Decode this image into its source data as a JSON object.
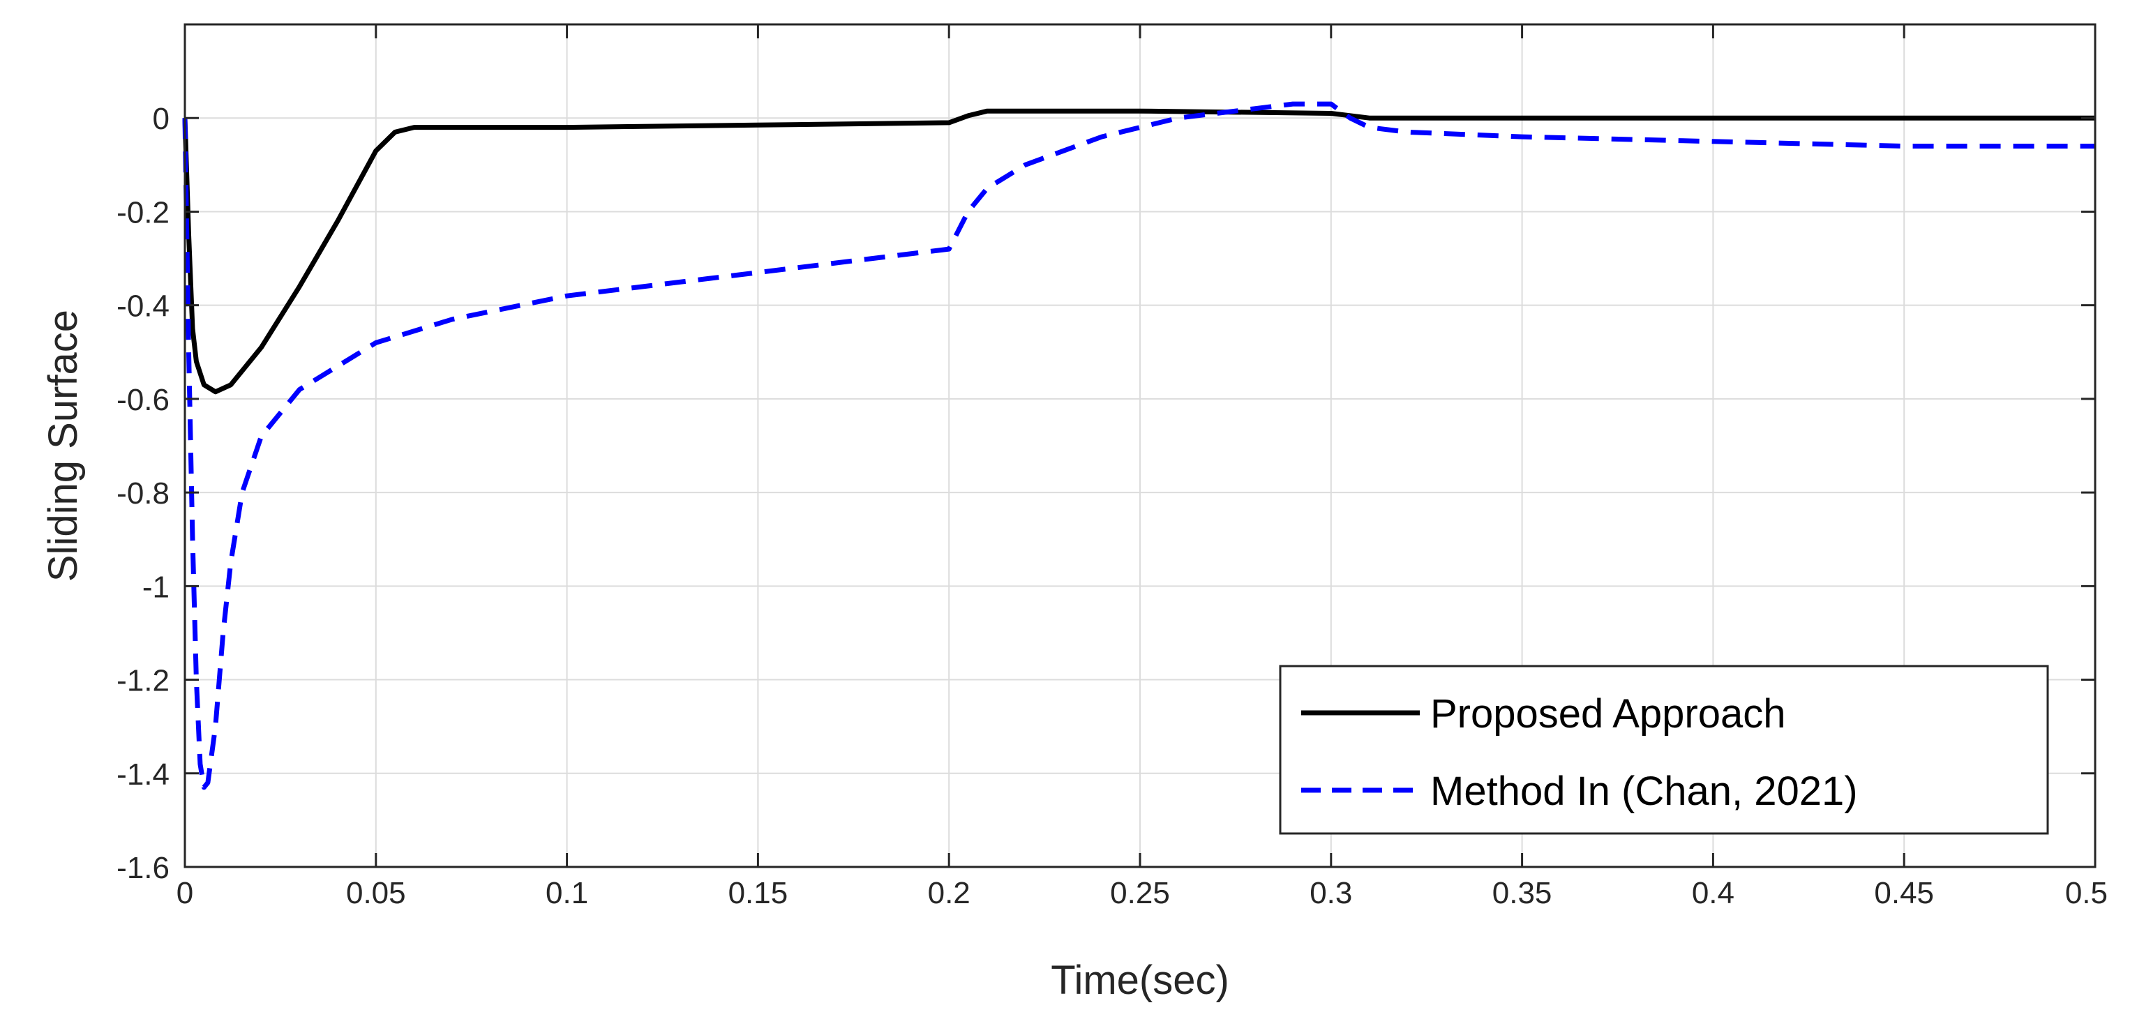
{
  "chart_data": {
    "type": "line",
    "title": "",
    "xlabel": "Time(sec)",
    "ylabel": "Sliding Surface",
    "xlim": [
      0,
      0.5
    ],
    "ylim": [
      -1.6,
      0.2
    ],
    "xticks": [
      0,
      0.05,
      0.1,
      0.15,
      0.2,
      0.25,
      0.3,
      0.35,
      0.4,
      0.45,
      0.5
    ],
    "xtick_labels": [
      "0",
      "0.05",
      "0.1",
      "0.15",
      "0.2",
      "0.25",
      "0.3",
      "0.35",
      "0.4",
      "0.45",
      "0.5"
    ],
    "yticks": [
      0,
      -0.2,
      -0.4,
      -0.6,
      -0.8,
      -1,
      -1.2,
      -1.4,
      -1.6
    ],
    "ytick_labels": [
      "0",
      "-0.2",
      "-0.4",
      "-0.6",
      "-0.8",
      "-1",
      "-1.2",
      "-1.4",
      "-1.6"
    ],
    "grid": true,
    "legend_position": "bottom-right",
    "series": [
      {
        "name": "Proposed Approach",
        "color": "#000000",
        "style": "solid",
        "x": [
          0,
          0.001,
          0.002,
          0.003,
          0.005,
          0.008,
          0.012,
          0.02,
          0.03,
          0.04,
          0.05,
          0.055,
          0.06,
          0.1,
          0.15,
          0.2,
          0.205,
          0.21,
          0.25,
          0.3,
          0.31,
          0.35,
          0.4,
          0.45,
          0.5
        ],
        "y": [
          0,
          -0.25,
          -0.45,
          -0.52,
          -0.57,
          -0.585,
          -0.57,
          -0.49,
          -0.36,
          -0.22,
          -0.07,
          -0.03,
          -0.02,
          -0.02,
          -0.015,
          -0.01,
          0.005,
          0.015,
          0.015,
          0.01,
          0,
          0,
          0,
          0,
          0
        ]
      },
      {
        "name": "Method In (Chan, 2021)",
        "color": "#0000ff",
        "style": "dashed",
        "x": [
          0,
          0.001,
          0.002,
          0.003,
          0.004,
          0.005,
          0.006,
          0.008,
          0.01,
          0.012,
          0.015,
          0.02,
          0.03,
          0.05,
          0.07,
          0.1,
          0.15,
          0.2,
          0.205,
          0.21,
          0.22,
          0.24,
          0.26,
          0.28,
          0.29,
          0.3,
          0.305,
          0.31,
          0.32,
          0.35,
          0.4,
          0.45,
          0.5
        ],
        "y": [
          0,
          -0.5,
          -0.9,
          -1.2,
          -1.38,
          -1.43,
          -1.42,
          -1.3,
          -1.1,
          -0.95,
          -0.8,
          -0.68,
          -0.58,
          -0.48,
          -0.43,
          -0.38,
          -0.33,
          -0.28,
          -0.2,
          -0.15,
          -0.1,
          -0.04,
          0,
          0.02,
          0.03,
          0.03,
          0,
          -0.02,
          -0.03,
          -0.04,
          -0.05,
          -0.06,
          -0.06
        ]
      }
    ]
  }
}
